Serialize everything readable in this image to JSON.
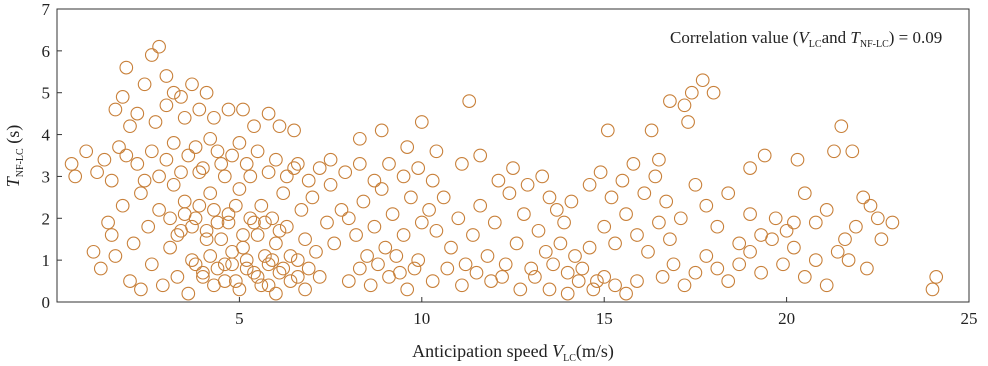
{
  "chart_data": {
    "type": "scatter",
    "title": "",
    "annotation": {
      "prefix": "Correlation value (",
      "var1_base": "V",
      "var1_sub": "LC",
      "mid": "and ",
      "var2_base": "T",
      "var2_sub": "NF-LC",
      "suffix": ") = 0.09"
    },
    "xlabel": {
      "prefix": "Anticipation speed ",
      "base": "V",
      "sub": "LC",
      "suffix": "(m/s)"
    },
    "ylabel": {
      "base": "T",
      "sub": "NF-LC",
      "suffix": " (s)"
    },
    "xlim": [
      0,
      25
    ],
    "ylim": [
      0,
      7
    ],
    "xticks": [
      5,
      10,
      15,
      20,
      25
    ],
    "yticks": [
      0,
      1,
      2,
      3,
      4,
      5,
      6,
      7
    ],
    "grid": false,
    "marker": {
      "shape": "open-circle",
      "color": "#c8803a"
    },
    "points": [
      [
        0.4,
        3.3
      ],
      [
        0.5,
        3.0
      ],
      [
        0.8,
        3.6
      ],
      [
        1.1,
        3.1
      ],
      [
        1.3,
        3.4
      ],
      [
        1.5,
        2.9
      ],
      [
        1.7,
        3.7
      ],
      [
        1.9,
        3.5
      ],
      [
        1.6,
        4.6
      ],
      [
        1.8,
        4.9
      ],
      [
        2.0,
        4.2
      ],
      [
        2.2,
        4.5
      ],
      [
        1.9,
        5.6
      ],
      [
        2.4,
        5.2
      ],
      [
        2.6,
        5.9
      ],
      [
        2.8,
        6.1
      ],
      [
        3.0,
        5.4
      ],
      [
        3.2,
        5.0
      ],
      [
        3.4,
        4.9
      ],
      [
        3.7,
        5.2
      ],
      [
        3.9,
        4.6
      ],
      [
        4.1,
        5.0
      ],
      [
        4.3,
        4.4
      ],
      [
        4.7,
        4.6
      ],
      [
        5.1,
        4.6
      ],
      [
        5.4,
        4.2
      ],
      [
        5.8,
        4.5
      ],
      [
        6.1,
        4.2
      ],
      [
        6.5,
        4.1
      ],
      [
        3.0,
        4.7
      ],
      [
        2.7,
        4.3
      ],
      [
        3.5,
        4.4
      ],
      [
        1.0,
        1.2
      ],
      [
        1.2,
        0.8
      ],
      [
        1.4,
        1.9
      ],
      [
        1.5,
        1.6
      ],
      [
        1.6,
        1.1
      ],
      [
        1.8,
        2.3
      ],
      [
        2.0,
        0.5
      ],
      [
        2.1,
        1.4
      ],
      [
        2.3,
        2.6
      ],
      [
        2.3,
        0.3
      ],
      [
        2.5,
        1.8
      ],
      [
        2.6,
        0.9
      ],
      [
        2.8,
        2.2
      ],
      [
        2.9,
        0.4
      ],
      [
        3.1,
        1.3
      ],
      [
        3.2,
        2.8
      ],
      [
        3.3,
        0.6
      ],
      [
        3.4,
        1.7
      ],
      [
        3.5,
        2.4
      ],
      [
        3.6,
        0.2
      ],
      [
        3.7,
        1.0
      ],
      [
        3.8,
        2.0
      ],
      [
        3.9,
        3.1
      ],
      [
        4.0,
        0.7
      ],
      [
        4.1,
        1.5
      ],
      [
        4.2,
        2.6
      ],
      [
        4.3,
        0.4
      ],
      [
        4.4,
        1.9
      ],
      [
        4.5,
        3.3
      ],
      [
        4.6,
        0.9
      ],
      [
        4.7,
        2.1
      ],
      [
        4.8,
        1.2
      ],
      [
        4.9,
        0.5
      ],
      [
        5.0,
        2.7
      ],
      [
        5.1,
        1.6
      ],
      [
        5.2,
        0.8
      ],
      [
        5.3,
        3.0
      ],
      [
        5.4,
        1.9
      ],
      [
        5.5,
        0.6
      ],
      [
        5.6,
        2.3
      ],
      [
        5.7,
        1.1
      ],
      [
        5.8,
        0.4
      ],
      [
        5.9,
        2.0
      ],
      [
        6.0,
        1.4
      ],
      [
        6.1,
        0.7
      ],
      [
        6.2,
        2.6
      ],
      [
        6.3,
        1.8
      ],
      [
        6.4,
        0.5
      ],
      [
        6.5,
        3.2
      ],
      [
        6.6,
        1.0
      ],
      [
        6.7,
        2.2
      ],
      [
        6.8,
        1.5
      ],
      [
        6.9,
        0.8
      ],
      [
        7.0,
        2.5
      ],
      [
        7.1,
        1.2
      ],
      [
        7.2,
        0.6
      ],
      [
        2.2,
        3.3
      ],
      [
        2.4,
        2.9
      ],
      [
        2.6,
        3.6
      ],
      [
        2.8,
        3.0
      ],
      [
        3.0,
        3.4
      ],
      [
        3.2,
        3.8
      ],
      [
        3.4,
        3.1
      ],
      [
        3.6,
        3.5
      ],
      [
        3.8,
        3.7
      ],
      [
        4.0,
        3.2
      ],
      [
        4.2,
        3.9
      ],
      [
        4.4,
        3.6
      ],
      [
        4.6,
        3.0
      ],
      [
        4.8,
        3.5
      ],
      [
        5.0,
        3.8
      ],
      [
        5.2,
        3.3
      ],
      [
        5.5,
        3.6
      ],
      [
        5.8,
        3.1
      ],
      [
        6.0,
        3.4
      ],
      [
        6.3,
        3.0
      ],
      [
        6.6,
        3.3
      ],
      [
        6.9,
        2.9
      ],
      [
        7.2,
        3.2
      ],
      [
        7.5,
        2.8
      ],
      [
        3.1,
        2.0
      ],
      [
        3.3,
        1.6
      ],
      [
        3.5,
        2.1
      ],
      [
        3.7,
        1.8
      ],
      [
        3.9,
        2.3
      ],
      [
        4.1,
        1.7
      ],
      [
        4.3,
        2.2
      ],
      [
        4.5,
        1.5
      ],
      [
        4.7,
        1.9
      ],
      [
        4.9,
        2.3
      ],
      [
        5.1,
        1.3
      ],
      [
        5.3,
        2.0
      ],
      [
        5.5,
        1.6
      ],
      [
        5.7,
        1.9
      ],
      [
        5.9,
        1.0
      ],
      [
        6.1,
        1.7
      ],
      [
        3.8,
        0.9
      ],
      [
        4.0,
        0.6
      ],
      [
        4.2,
        1.1
      ],
      [
        4.4,
        0.8
      ],
      [
        4.6,
        0.5
      ],
      [
        4.8,
        0.9
      ],
      [
        5.0,
        0.3
      ],
      [
        5.2,
        1.0
      ],
      [
        5.4,
        0.7
      ],
      [
        5.6,
        0.4
      ],
      [
        5.8,
        0.9
      ],
      [
        6.0,
        0.2
      ],
      [
        6.2,
        0.8
      ],
      [
        6.4,
        1.1
      ],
      [
        6.6,
        0.6
      ],
      [
        6.8,
        0.3
      ],
      [
        7.4,
        1.9
      ],
      [
        7.6,
        1.4
      ],
      [
        7.8,
        2.2
      ],
      [
        8.0,
        2.0
      ],
      [
        8.2,
        1.6
      ],
      [
        8.4,
        2.4
      ],
      [
        8.5,
        1.1
      ],
      [
        8.7,
        1.8
      ],
      [
        8.9,
        2.7
      ],
      [
        9.0,
        1.3
      ],
      [
        9.2,
        2.1
      ],
      [
        9.4,
        0.7
      ],
      [
        9.5,
        1.6
      ],
      [
        9.7,
        2.5
      ],
      [
        9.9,
        1.0
      ],
      [
        10.0,
        1.9
      ],
      [
        8.0,
        0.5
      ],
      [
        8.3,
        0.8
      ],
      [
        8.6,
        0.4
      ],
      [
        8.8,
        0.9
      ],
      [
        9.1,
        0.6
      ],
      [
        9.3,
        1.1
      ],
      [
        9.6,
        0.3
      ],
      [
        9.8,
        0.8
      ],
      [
        7.5,
        3.4
      ],
      [
        7.9,
        3.1
      ],
      [
        8.3,
        3.3
      ],
      [
        8.7,
        2.9
      ],
      [
        9.1,
        3.3
      ],
      [
        9.5,
        3.0
      ],
      [
        9.9,
        3.2
      ],
      [
        10.3,
        2.9
      ],
      [
        8.3,
        3.9
      ],
      [
        8.9,
        4.1
      ],
      [
        9.6,
        3.7
      ],
      [
        10.0,
        4.3
      ],
      [
        10.4,
        3.6
      ],
      [
        11.1,
        3.3
      ],
      [
        11.3,
        4.8
      ],
      [
        11.6,
        3.5
      ],
      [
        10.2,
        2.2
      ],
      [
        10.4,
        1.7
      ],
      [
        10.6,
        2.5
      ],
      [
        10.8,
        1.3
      ],
      [
        11.0,
        2.0
      ],
      [
        11.2,
        0.9
      ],
      [
        11.4,
        1.6
      ],
      [
        11.6,
        2.3
      ],
      [
        11.8,
        1.1
      ],
      [
        12.0,
        1.9
      ],
      [
        12.2,
        0.6
      ],
      [
        12.4,
        2.6
      ],
      [
        12.6,
        1.4
      ],
      [
        12.8,
        2.1
      ],
      [
        13.0,
        0.8
      ],
      [
        13.2,
        1.7
      ],
      [
        10.3,
        0.5
      ],
      [
        10.7,
        0.8
      ],
      [
        11.1,
        0.4
      ],
      [
        11.5,
        0.7
      ],
      [
        11.9,
        0.5
      ],
      [
        12.3,
        0.9
      ],
      [
        12.7,
        0.3
      ],
      [
        13.1,
        0.6
      ],
      [
        12.1,
        2.9
      ],
      [
        12.5,
        3.2
      ],
      [
        12.9,
        2.8
      ],
      [
        13.3,
        3.0
      ],
      [
        13.5,
        2.5
      ],
      [
        13.7,
        2.2
      ],
      [
        13.9,
        1.9
      ],
      [
        14.1,
        2.4
      ],
      [
        13.4,
        1.2
      ],
      [
        13.6,
        0.9
      ],
      [
        13.8,
        1.4
      ],
      [
        14.0,
        0.7
      ],
      [
        14.2,
        1.1
      ],
      [
        14.4,
        0.8
      ],
      [
        14.6,
        1.3
      ],
      [
        14.8,
        0.5
      ],
      [
        13.5,
        0.3
      ],
      [
        14.0,
        0.2
      ],
      [
        14.3,
        0.5
      ],
      [
        14.7,
        0.3
      ],
      [
        15.0,
        0.6
      ],
      [
        15.3,
        0.4
      ],
      [
        15.6,
        0.2
      ],
      [
        15.9,
        0.5
      ],
      [
        14.6,
        2.8
      ],
      [
        14.9,
        3.1
      ],
      [
        15.2,
        2.5
      ],
      [
        15.5,
        2.9
      ],
      [
        15.8,
        3.3
      ],
      [
        16.1,
        2.6
      ],
      [
        16.4,
        3.0
      ],
      [
        16.7,
        2.4
      ],
      [
        15.0,
        1.8
      ],
      [
        15.3,
        1.4
      ],
      [
        15.6,
        2.1
      ],
      [
        15.9,
        1.6
      ],
      [
        16.2,
        1.2
      ],
      [
        16.5,
        1.9
      ],
      [
        16.8,
        1.5
      ],
      [
        17.1,
        2.0
      ],
      [
        15.1,
        4.1
      ],
      [
        16.3,
        4.1
      ],
      [
        16.5,
        3.4
      ],
      [
        16.8,
        4.8
      ],
      [
        17.2,
        4.7
      ],
      [
        17.4,
        5.0
      ],
      [
        17.7,
        5.3
      ],
      [
        18.0,
        5.0
      ],
      [
        17.3,
        4.3
      ],
      [
        17.5,
        2.8
      ],
      [
        17.8,
        2.3
      ],
      [
        18.1,
        1.8
      ],
      [
        18.4,
        2.6
      ],
      [
        18.7,
        1.4
      ],
      [
        19.0,
        2.1
      ],
      [
        19.3,
        1.6
      ],
      [
        16.6,
        0.6
      ],
      [
        16.9,
        0.9
      ],
      [
        17.2,
        0.4
      ],
      [
        17.5,
        0.7
      ],
      [
        17.8,
        1.1
      ],
      [
        18.1,
        0.8
      ],
      [
        18.4,
        0.5
      ],
      [
        18.7,
        0.9
      ],
      [
        19.0,
        1.2
      ],
      [
        19.3,
        0.7
      ],
      [
        19.6,
        1.5
      ],
      [
        19.9,
        0.9
      ],
      [
        20.2,
        1.3
      ],
      [
        20.5,
        0.6
      ],
      [
        20.8,
        1.0
      ],
      [
        21.1,
        0.4
      ],
      [
        19.0,
        3.2
      ],
      [
        19.4,
        3.5
      ],
      [
        19.7,
        2.0
      ],
      [
        20.0,
        1.7
      ],
      [
        20.3,
        3.4
      ],
      [
        20.5,
        2.6
      ],
      [
        20.8,
        1.9
      ],
      [
        21.1,
        2.2
      ],
      [
        21.3,
        3.6
      ],
      [
        21.5,
        4.2
      ],
      [
        21.8,
        3.6
      ],
      [
        21.6,
        1.5
      ],
      [
        21.9,
        1.8
      ],
      [
        22.1,
        2.5
      ],
      [
        22.3,
        2.3
      ],
      [
        22.5,
        2.0
      ],
      [
        21.4,
        1.2
      ],
      [
        21.7,
        1.0
      ],
      [
        22.2,
        0.8
      ],
      [
        22.6,
        1.5
      ],
      [
        22.9,
        1.9
      ],
      [
        20.2,
        1.9
      ],
      [
        24.0,
        0.3
      ],
      [
        24.1,
        0.6
      ]
    ]
  }
}
